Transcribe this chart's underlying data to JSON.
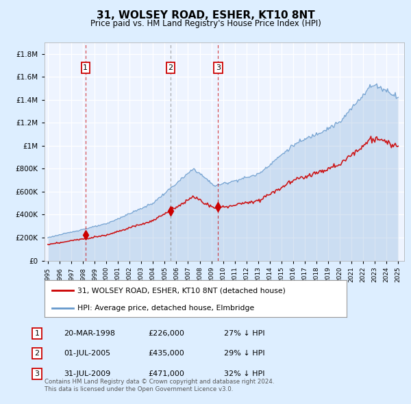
{
  "title": "31, WOLSEY ROAD, ESHER, KT10 8NT",
  "subtitle": "Price paid vs. HM Land Registry's House Price Index (HPI)",
  "y_ticks": [
    0,
    200000,
    400000,
    600000,
    800000,
    1000000,
    1200000,
    1400000,
    1600000,
    1800000
  ],
  "ylim": [
    0,
    1900000
  ],
  "xlim_start": 1994.7,
  "xlim_end": 2025.5,
  "sale_dates": [
    1998.22,
    2005.5,
    2009.58
  ],
  "sale_prices": [
    226000,
    435000,
    471000
  ],
  "sale_labels": [
    "1",
    "2",
    "3"
  ],
  "sale_vline_styles": [
    "red_dash",
    "grey_dash",
    "red_dash"
  ],
  "sale_info": [
    {
      "num": "1",
      "date": "20-MAR-1998",
      "price": "£226,000",
      "hpi": "27% ↓ HPI"
    },
    {
      "num": "2",
      "date": "01-JUL-2005",
      "price": "£435,000",
      "hpi": "29% ↓ HPI"
    },
    {
      "num": "3",
      "date": "31-JUL-2009",
      "price": "£471,000",
      "hpi": "32% ↓ HPI"
    }
  ],
  "legend_line1": "31, WOLSEY ROAD, ESHER, KT10 8NT (detached house)",
  "legend_line2": "HPI: Average price, detached house, Elmbridge",
  "footer": "Contains HM Land Registry data © Crown copyright and database right 2024.\nThis data is licensed under the Open Government Licence v3.0.",
  "property_color": "#cc0000",
  "hpi_color": "#6699cc",
  "background_color": "#ddeeff",
  "plot_bg_color": "#ddeeff",
  "chart_bg_color": "#eef4ff"
}
